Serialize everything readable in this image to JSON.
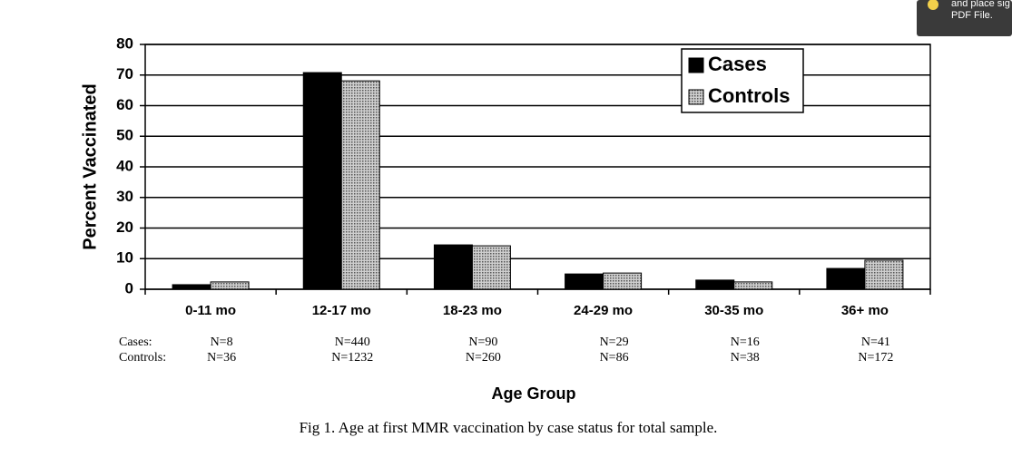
{
  "chart_data": {
    "type": "bar",
    "y_label": "Percent Vaccinated",
    "x_label": "Age Group",
    "categories": [
      "0-11 mo",
      "12-17 mo",
      "18-23 mo",
      "24-29 mo",
      "30-35 mo",
      "36+ mo"
    ],
    "series": [
      {
        "name": "Cases",
        "color": "#000000",
        "values": [
          1.5,
          70.8,
          14.5,
          5.0,
          3.0,
          6.8
        ]
      },
      {
        "name": "Controls",
        "color": "#9a9a9a",
        "values": [
          2.4,
          68.1,
          14.2,
          5.3,
          2.4,
          9.5
        ]
      }
    ],
    "ylim": [
      0,
      80
    ],
    "yticks": [
      0,
      10,
      20,
      30,
      40,
      50,
      60,
      70,
      80
    ],
    "grid": true,
    "legend": "top-right",
    "sample_sizes": {
      "row_labels": [
        "Cases:",
        "Controls:"
      ],
      "rows": [
        [
          "N=8",
          "N=440",
          "N=90",
          "N=29",
          "N=16",
          "N=41"
        ],
        [
          "N=36",
          "N=1232",
          "N=260",
          "N=86",
          "N=38",
          "N=172"
        ]
      ]
    }
  },
  "caption": "Fig 1.  Age at first MMR vaccination by case status for total sample.",
  "popup": {
    "lines": [
      "and place sig",
      "PDF File."
    ]
  }
}
